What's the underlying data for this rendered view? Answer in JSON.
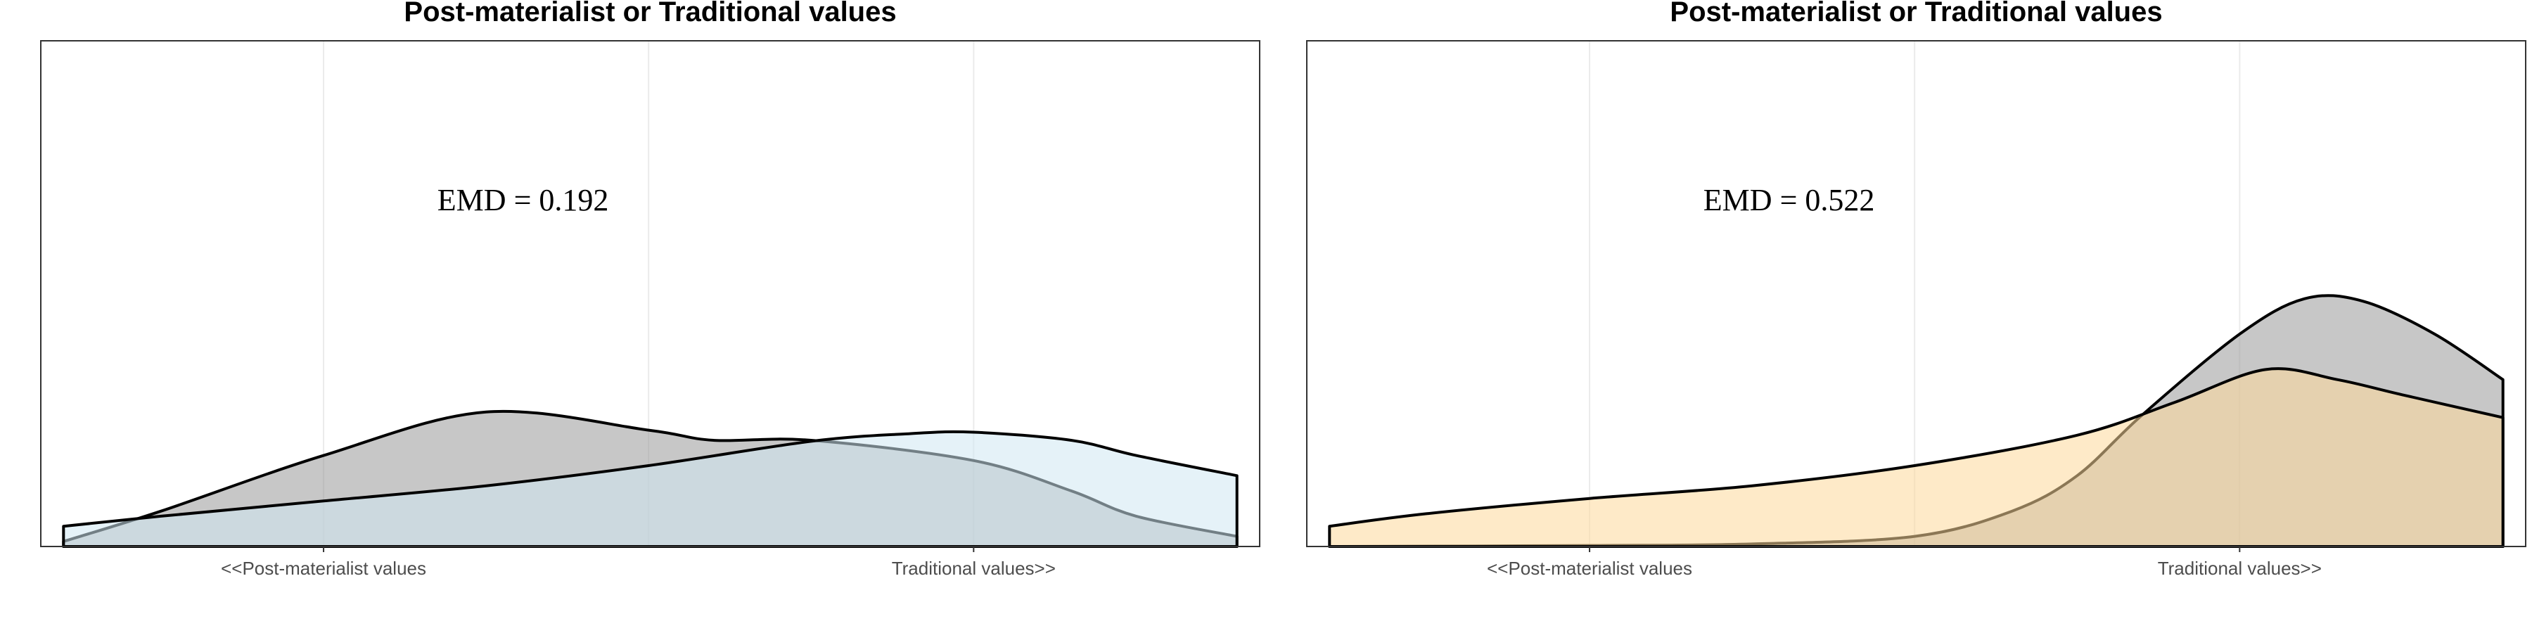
{
  "chart_data": [
    {
      "type": "area",
      "title": "Post-materialist or Traditional values",
      "xlabel": "",
      "ylabel": "",
      "x_ticks": [
        {
          "x": 2,
          "label": "<<Post-materialist values"
        },
        {
          "x": 4,
          "label": "Traditional values>>"
        }
      ],
      "xlim": [
        1.13,
        4.88
      ],
      "ylim": [
        0,
        1
      ],
      "grid": true,
      "annotation": {
        "text": "EMD = 0.192",
        "x": 2.35,
        "y": 0.665
      },
      "series": [
        {
          "fill": "#999999",
          "x": [
            1.2,
            1.5,
            2.0,
            2.5,
            3.0,
            3.2,
            3.5,
            4.0,
            4.3,
            4.5,
            4.81
          ],
          "y": [
            0.01,
            0.07,
            0.18,
            0.266,
            0.23,
            0.21,
            0.21,
            0.17,
            0.11,
            0.06,
            0.02
          ]
        },
        {
          "fill": "#cfe8f3",
          "x": [
            1.2,
            1.5,
            2.0,
            2.5,
            3.0,
            3.5,
            3.8,
            4.0,
            4.3,
            4.5,
            4.81
          ],
          "y": [
            0.04,
            0.06,
            0.09,
            0.12,
            0.16,
            0.208,
            0.223,
            0.226,
            0.21,
            0.18,
            0.14
          ]
        }
      ]
    },
    {
      "type": "area",
      "title": "Post-materialist or Traditional values",
      "xlabel": "",
      "ylabel": "",
      "x_ticks": [
        {
          "x": 2,
          "label": "<<Post-materialist values"
        },
        {
          "x": 4,
          "label": "Traditional values>>"
        }
      ],
      "xlim": [
        1.13,
        4.88
      ],
      "ylim": [
        0,
        1
      ],
      "grid": true,
      "annotation": {
        "text": "EMD = 0.522",
        "x": 2.35,
        "y": 0.665
      },
      "series": [
        {
          "fill": "#999999",
          "x": [
            1.2,
            2.0,
            2.5,
            3.0,
            3.3,
            3.5,
            3.7,
            4.0,
            4.2,
            4.38,
            4.6,
            4.81
          ],
          "y": [
            0.0,
            0.002,
            0.005,
            0.02,
            0.07,
            0.14,
            0.26,
            0.42,
            0.49,
            0.485,
            0.42,
            0.33
          ]
        },
        {
          "fill": "#fdd89b",
          "x": [
            1.2,
            1.5,
            2.0,
            2.5,
            3.0,
            3.5,
            3.8,
            4.08,
            4.3,
            4.5,
            4.81
          ],
          "y": [
            0.04,
            0.065,
            0.095,
            0.12,
            0.16,
            0.22,
            0.285,
            0.35,
            0.33,
            0.3,
            0.255
          ]
        }
      ]
    }
  ]
}
